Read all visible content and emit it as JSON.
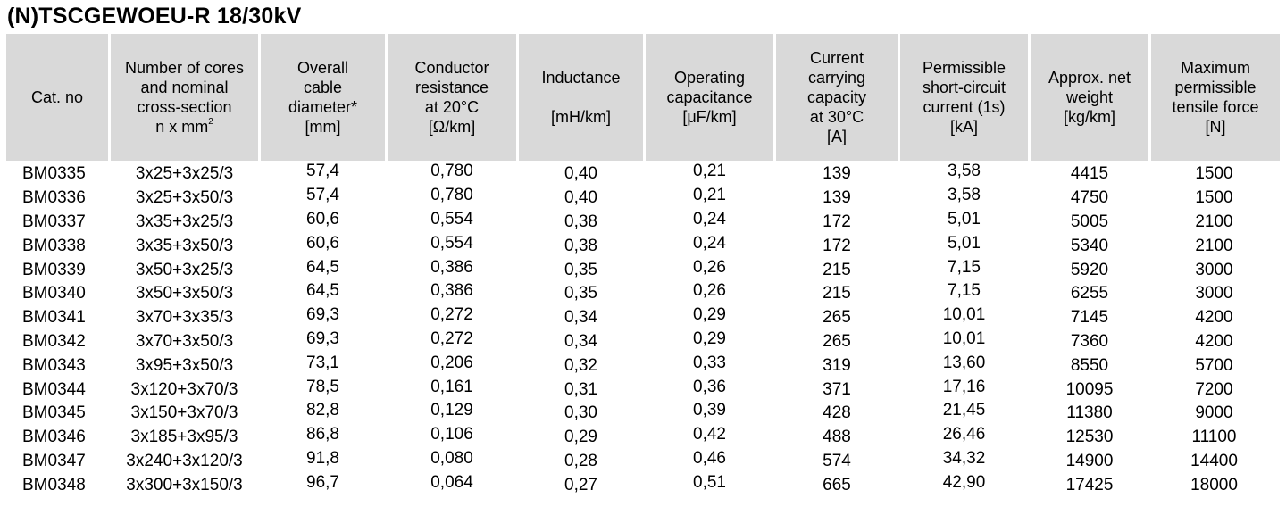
{
  "title": "(N)TSCGEWOEU-R 18/30kV",
  "headers": [
    {
      "lines": [
        "Cat. no"
      ]
    },
    {
      "lines": [
        "Number of cores",
        "and nominal",
        "cross-section",
        "n x mm²"
      ]
    },
    {
      "lines": [
        "Overall",
        "cable",
        "diameter*",
        "[mm]"
      ]
    },
    {
      "lines": [
        "Conductor",
        "resistance",
        "at 20°C",
        "[Ω/km]"
      ]
    },
    {
      "lines": [
        "Inductance",
        "",
        "[mH/km]"
      ]
    },
    {
      "lines": [
        "Operating",
        "capacitance",
        "[μF/km]"
      ]
    },
    {
      "lines": [
        "Current",
        "carrying",
        "capacity",
        "at 30°C",
        "[A]"
      ]
    },
    {
      "lines": [
        "Permissible",
        "short-circuit",
        "current (1s)",
        "[kA]"
      ]
    },
    {
      "lines": [
        "Approx. net",
        "weight",
        "[kg/km]"
      ]
    },
    {
      "lines": [
        "Maximum",
        "permissible",
        "tensile force",
        "[N]"
      ]
    }
  ],
  "rows": [
    [
      "BM0335",
      "3x25+3x25/3",
      "57,4",
      "0,780",
      "0,40",
      "0,21",
      "139",
      "3,58",
      "4415",
      "1500"
    ],
    [
      "BM0336",
      "3x25+3x50/3",
      "57,4",
      "0,780",
      "0,40",
      "0,21",
      "139",
      "3,58",
      "4750",
      "1500"
    ],
    [
      "BM0337",
      "3x35+3x25/3",
      "60,6",
      "0,554",
      "0,38",
      "0,24",
      "172",
      "5,01",
      "5005",
      "2100"
    ],
    [
      "BM0338",
      "3x35+3x50/3",
      "60,6",
      "0,554",
      "0,38",
      "0,24",
      "172",
      "5,01",
      "5340",
      "2100"
    ],
    [
      "BM0339",
      "3x50+3x25/3",
      "64,5",
      "0,386",
      "0,35",
      "0,26",
      "215",
      "7,15",
      "5920",
      "3000"
    ],
    [
      "BM0340",
      "3x50+3x50/3",
      "64,5",
      "0,386",
      "0,35",
      "0,26",
      "215",
      "7,15",
      "6255",
      "3000"
    ],
    [
      "BM0341",
      "3x70+3x35/3",
      "69,3",
      "0,272",
      "0,34",
      "0,29",
      "265",
      "10,01",
      "7145",
      "4200"
    ],
    [
      "BM0342",
      "3x70+3x50/3",
      "69,3",
      "0,272",
      "0,34",
      "0,29",
      "265",
      "10,01",
      "7360",
      "4200"
    ],
    [
      "BM0343",
      "3x95+3x50/3",
      "73,1",
      "0,206",
      "0,32",
      "0,33",
      "319",
      "13,60",
      "8550",
      "5700"
    ],
    [
      "BM0344",
      "3x120+3x70/3",
      "78,5",
      "0,161",
      "0,31",
      "0,36",
      "371",
      "17,16",
      "10095",
      "7200"
    ],
    [
      "BM0345",
      "3x150+3x70/3",
      "82,8",
      "0,129",
      "0,30",
      "0,39",
      "428",
      "21,45",
      "11380",
      "9000"
    ],
    [
      "BM0346",
      "3x185+3x95/3",
      "86,8",
      "0,106",
      "0,29",
      "0,42",
      "488",
      "26,46",
      "12530",
      "11100"
    ],
    [
      "BM0347",
      "3x240+3x120/3",
      "91,8",
      "0,080",
      "0,28",
      "0,46",
      "574",
      "34,32",
      "14900",
      "14400"
    ],
    [
      "BM0348",
      "3x300+3x150/3",
      "96,7",
      "0,064",
      "0,27",
      "0,51",
      "665",
      "42,90",
      "17425",
      "18000"
    ]
  ]
}
